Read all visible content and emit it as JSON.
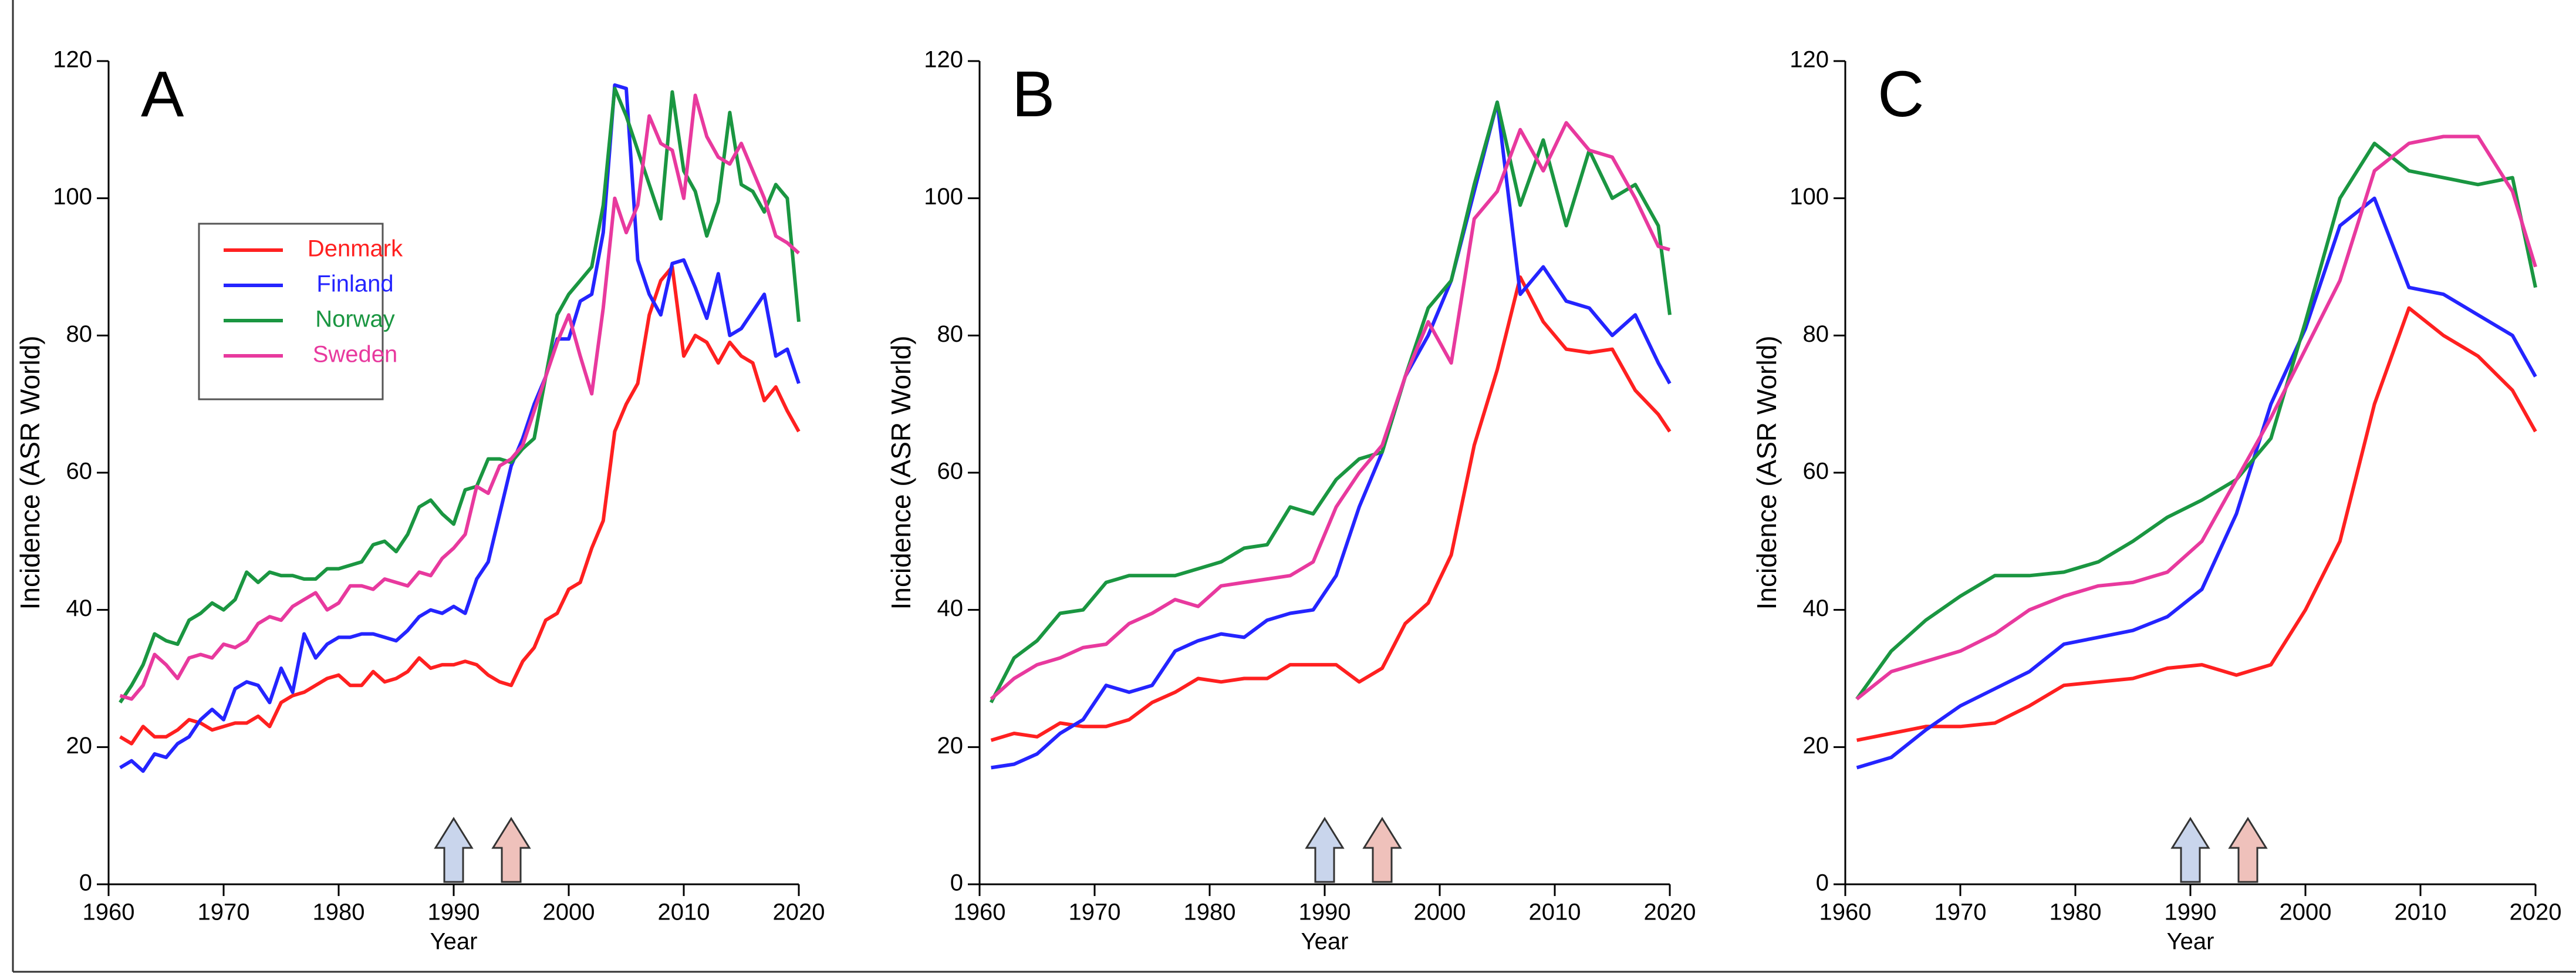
{
  "chart_data": [
    {
      "type": "line",
      "title": "A",
      "xlabel": "Year",
      "ylabel": "Incidence (ASR World)",
      "xlim": [
        1960,
        2020
      ],
      "ylim": [
        0,
        120
      ],
      "xticks": [
        1960,
        1970,
        1980,
        1990,
        2000,
        2010,
        2020
      ],
      "yticks": [
        0,
        20,
        40,
        60,
        80,
        100,
        120
      ],
      "legend": "upper left",
      "x": [
        1961,
        1962,
        1963,
        1964,
        1965,
        1966,
        1967,
        1968,
        1969,
        1970,
        1971,
        1972,
        1973,
        1974,
        1975,
        1976,
        1977,
        1978,
        1979,
        1980,
        1981,
        1982,
        1983,
        1984,
        1985,
        1986,
        1987,
        1988,
        1989,
        1990,
        1991,
        1992,
        1993,
        1994,
        1995,
        1996,
        1997,
        1998,
        1999,
        2000,
        2001,
        2002,
        2003,
        2004,
        2005,
        2006,
        2007,
        2008,
        2009,
        2010,
        2011,
        2012,
        2013,
        2014,
        2015,
        2016,
        2017,
        2018,
        2019,
        2020
      ],
      "series": [
        {
          "name": "Denmark",
          "color": "#ff2020",
          "values": [
            21.5,
            20.5,
            23,
            21.5,
            21.5,
            22.5,
            24,
            23.5,
            22.5,
            23,
            23.5,
            23.5,
            24.5,
            23,
            26.5,
            27.5,
            28,
            29,
            30,
            30.5,
            29,
            29,
            31,
            29.5,
            30,
            31,
            33,
            31.5,
            32,
            32,
            32.5,
            32,
            30.5,
            29.5,
            29,
            32.5,
            34.5,
            38.5,
            39.5,
            43,
            44,
            49,
            53,
            66,
            70,
            73,
            83,
            88,
            90,
            77,
            80,
            79,
            76,
            79,
            77,
            76,
            70.5,
            72.5,
            69,
            66
          ]
        },
        {
          "name": "Finland",
          "color": "#2424ff",
          "values": [
            17,
            18,
            16.5,
            19,
            18.5,
            20.5,
            21.5,
            24,
            25.5,
            24,
            28.5,
            29.5,
            29,
            26.5,
            31.5,
            28,
            36.5,
            33,
            35,
            36,
            36,
            36.5,
            36.5,
            36,
            35.5,
            37,
            39,
            40,
            39.5,
            40.5,
            39.5,
            44.5,
            47,
            54,
            61,
            65,
            70,
            74,
            79.5,
            79.5,
            85,
            86,
            95,
            116.5,
            116,
            91,
            86,
            83,
            90.5,
            91,
            87,
            82.5,
            89,
            80,
            81,
            83.5,
            86,
            77,
            78,
            73
          ]
        },
        {
          "name": "Norway",
          "color": "#1a9641",
          "values": [
            26.5,
            29,
            32,
            36.5,
            35.5,
            35,
            38.5,
            39.5,
            41,
            40,
            41.5,
            45.5,
            44,
            45.5,
            45,
            45,
            44.5,
            44.5,
            46,
            46,
            46.5,
            47,
            49.5,
            50,
            48.5,
            51,
            55,
            56,
            54,
            52.5,
            57.5,
            58,
            62,
            62,
            61.5,
            63.5,
            65,
            74,
            83,
            86,
            88,
            90,
            99,
            116,
            112,
            107,
            102,
            97,
            115.5,
            104,
            101,
            94.5,
            99.5,
            112.5,
            102,
            101,
            98,
            102,
            100,
            82
          ]
        },
        {
          "name": "Sweden",
          "color": "#e8399e",
          "values": [
            27.5,
            27,
            29,
            33.5,
            32,
            30,
            33,
            33.5,
            33,
            35,
            34.5,
            35.5,
            38,
            39,
            38.5,
            40.5,
            41.5,
            42.5,
            40,
            41,
            43.5,
            43.5,
            43,
            44.5,
            44,
            43.5,
            45.5,
            45,
            47.5,
            49,
            51,
            58,
            57,
            61,
            62,
            64,
            69,
            74,
            79,
            83,
            77,
            71.5,
            84,
            100,
            95,
            99,
            112,
            108,
            107,
            100,
            115,
            109,
            106,
            105,
            108,
            104,
            100,
            94.5,
            93.5,
            92
          ]
        }
      ],
      "arrows": [
        {
          "x": 1990,
          "color": "#c9d5ec"
        },
        {
          "x": 1995,
          "color": "#efc1bb"
        }
      ]
    },
    {
      "type": "line",
      "title": "B",
      "xlabel": "Year",
      "ylabel": "Incidence (ASR World)",
      "xlim": [
        1960,
        2020
      ],
      "ylim": [
        0,
        120
      ],
      "xticks": [
        1960,
        1970,
        1980,
        1990,
        2000,
        2010,
        2020
      ],
      "yticks": [
        0,
        20,
        40,
        60,
        80,
        100,
        120
      ],
      "x": [
        1961,
        1963,
        1965,
        1967,
        1969,
        1971,
        1973,
        1975,
        1977,
        1979,
        1981,
        1983,
        1985,
        1987,
        1989,
        1991,
        1993,
        1995,
        1997,
        1999,
        2001,
        2003,
        2005,
        2007,
        2009,
        2011,
        2013,
        2015,
        2017,
        2019,
        2020
      ],
      "series": [
        {
          "color": "#ff2020",
          "values": [
            21,
            22,
            21.5,
            23.5,
            23,
            23,
            24,
            26.5,
            28,
            30,
            29.5,
            30,
            30,
            32,
            32,
            32,
            29.5,
            31.5,
            38,
            41,
            48,
            64,
            75,
            88.5,
            82,
            78,
            77.5,
            78,
            72,
            68.5,
            66
          ]
        },
        {
          "color": "#2424ff",
          "values": [
            17,
            17.5,
            19,
            22,
            24,
            29,
            28,
            29,
            34,
            35.5,
            36.5,
            36,
            38.5,
            39.5,
            40,
            45,
            55,
            63,
            74,
            80,
            88,
            101,
            114,
            86,
            90,
            85,
            84,
            80,
            83,
            76,
            73
          ]
        },
        {
          "color": "#1a9641",
          "values": [
            26.5,
            33,
            35.5,
            39.5,
            40,
            44,
            45,
            45,
            45,
            46,
            47,
            49,
            49.5,
            55,
            54,
            59,
            62,
            63,
            74,
            84,
            88,
            102,
            114,
            99,
            108.5,
            96,
            107,
            100,
            102,
            96,
            83
          ]
        },
        {
          "color": "#e8399e",
          "values": [
            27,
            30,
            32,
            33,
            34.5,
            35,
            38,
            39.5,
            41.5,
            40.5,
            43.5,
            44,
            44.5,
            45,
            47,
            55,
            60,
            64,
            74,
            82,
            76,
            97,
            101,
            110,
            104,
            111,
            107,
            106,
            100,
            93,
            92.5
          ]
        }
      ],
      "arrows": [
        {
          "x": 1990,
          "color": "#c9d5ec"
        },
        {
          "x": 1995,
          "color": "#efc1bb"
        }
      ]
    },
    {
      "type": "line",
      "title": "C",
      "xlabel": "Year",
      "ylabel": "Incidence (ASR World)",
      "xlim": [
        1960,
        2020
      ],
      "ylim": [
        0,
        120
      ],
      "xticks": [
        1960,
        1970,
        1980,
        1990,
        2000,
        2010,
        2020
      ],
      "yticks": [
        0,
        20,
        40,
        60,
        80,
        100,
        120
      ],
      "x": [
        1961,
        1964,
        1967,
        1970,
        1973,
        1976,
        1979,
        1982,
        1985,
        1988,
        1991,
        1994,
        1997,
        2000,
        2003,
        2006,
        2009,
        2012,
        2015,
        2018,
        2020
      ],
      "series": [
        {
          "color": "#ff2020",
          "values": [
            21,
            22,
            23,
            23,
            23.5,
            26,
            29,
            29.5,
            30,
            31.5,
            32,
            30.5,
            32,
            40,
            50,
            70,
            84,
            80,
            77,
            72,
            66
          ]
        },
        {
          "color": "#2424ff",
          "values": [
            17,
            18.5,
            22.5,
            26,
            28.5,
            31,
            35,
            36,
            37,
            39,
            43,
            54,
            70,
            81,
            96,
            100,
            87,
            86,
            83,
            80,
            74
          ]
        },
        {
          "color": "#1a9641",
          "values": [
            27,
            34,
            38.5,
            42,
            45,
            45,
            45.5,
            47,
            50,
            53.5,
            56,
            59,
            65,
            82,
            100,
            108,
            104,
            103,
            102,
            103,
            87
          ]
        },
        {
          "color": "#e8399e",
          "values": [
            27,
            31,
            32.5,
            34,
            36.5,
            40,
            42,
            43.5,
            44,
            45.5,
            50,
            59,
            68,
            78,
            88,
            104,
            108,
            109,
            109,
            101,
            90
          ]
        }
      ],
      "arrows": [
        {
          "x": 1990,
          "color": "#c9d5ec"
        },
        {
          "x": 1995,
          "color": "#efc1bb"
        }
      ]
    }
  ]
}
